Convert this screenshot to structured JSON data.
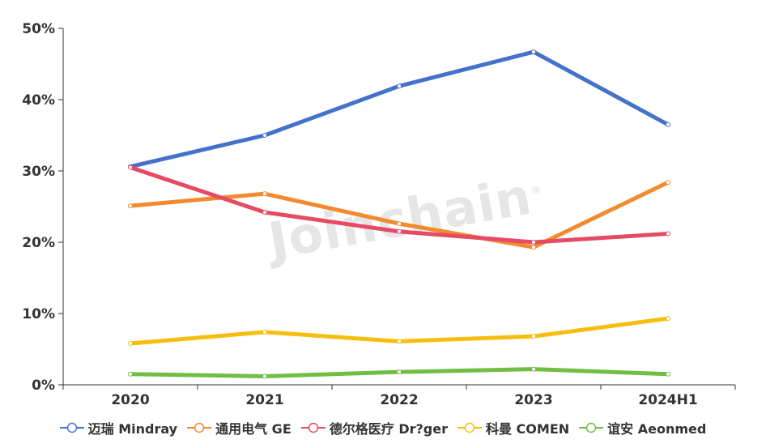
{
  "watermark": {
    "text": "Joinchain",
    "mark": "®"
  },
  "chart_data": {
    "type": "line",
    "title": "",
    "xlabel": "",
    "ylabel": "",
    "categories": [
      "2020",
      "2021",
      "2022",
      "2023",
      "2024H1"
    ],
    "ylim": [
      0,
      50
    ],
    "yticks": [
      "0%",
      "10%",
      "20%",
      "30%",
      "40%",
      "50%"
    ],
    "grid": false,
    "legend_position": "bottom",
    "series": [
      {
        "name": "迈瑞 Mindray",
        "color": "#4472CA",
        "values": [
          30.6,
          35.0,
          41.9,
          46.7,
          36.5
        ]
      },
      {
        "name": "通用电气 GE",
        "color": "#F28A2E",
        "values": [
          25.1,
          26.8,
          22.6,
          19.3,
          28.4
        ]
      },
      {
        "name": "德尔格医疗 Dr?ger",
        "color": "#E64A64",
        "values": [
          30.5,
          24.2,
          21.5,
          20.0,
          21.2
        ]
      },
      {
        "name": "科曼 COMEN",
        "color": "#F5BE0E",
        "values": [
          5.8,
          7.4,
          6.1,
          6.8,
          9.3
        ]
      },
      {
        "name": "谊安 Aeonmed",
        "color": "#72BE44",
        "values": [
          1.5,
          1.2,
          1.8,
          2.2,
          1.5
        ]
      }
    ]
  },
  "legend": {
    "items": [
      {
        "label": "迈瑞 Mindray",
        "color": "#4472CA"
      },
      {
        "label": "通用电气 GE",
        "color": "#F28A2E"
      },
      {
        "label": "德尔格医疗 Dr?ger",
        "color": "#E64A64"
      },
      {
        "label": "科曼 COMEN",
        "color": "#F5BE0E"
      },
      {
        "label": "谊安 Aeonmed",
        "color": "#72BE44"
      }
    ]
  }
}
